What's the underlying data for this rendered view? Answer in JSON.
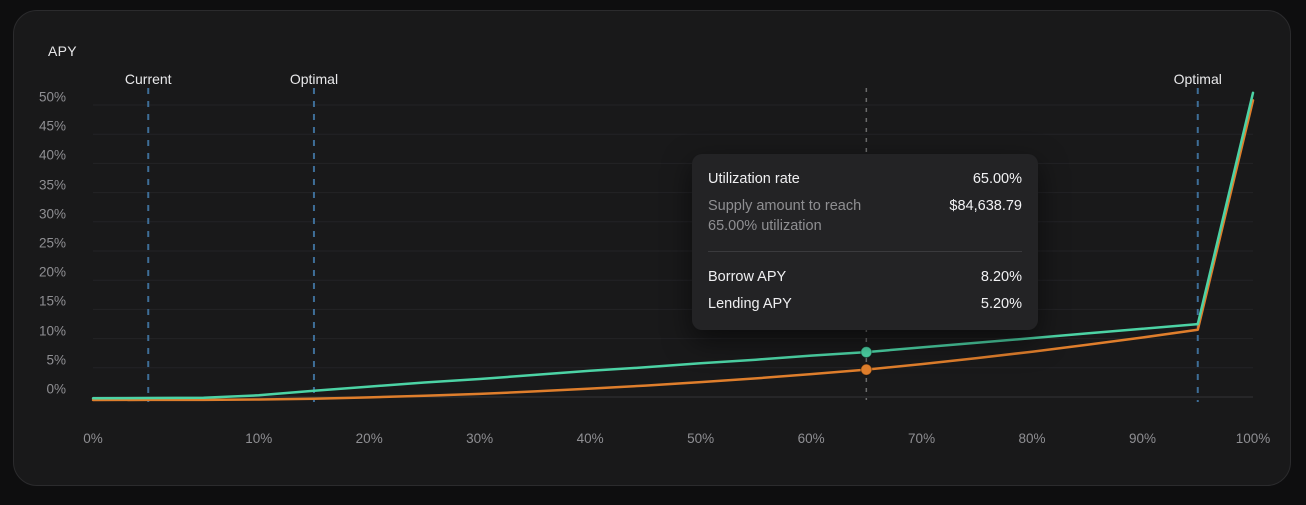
{
  "colors": {
    "page_bg": "#0e0e0f",
    "card_bg": "#19191a",
    "card_border": "#2b2b2d",
    "gridline": "#232326",
    "axis_baseline": "#323235",
    "borrow_line": "#4cd3a5",
    "lending_line": "#df7e2c",
    "marker_dashed": "#3e6e98",
    "crosshair_dashed": "#6b6b6b",
    "tick_text": "#8f8f93",
    "bright_text": "#e9e9eb",
    "tooltip_bg": "#232325"
  },
  "chart_data": {
    "type": "line",
    "title": "APY",
    "y_axis": {
      "label": "APY",
      "ticks": [
        0,
        5,
        10,
        15,
        20,
        25,
        30,
        35,
        40,
        45,
        50
      ],
      "tick_labels": [
        "0%",
        "5%",
        "10%",
        "15%",
        "20%",
        "25%",
        "30%",
        "35%",
        "40%",
        "45%",
        "50%"
      ],
      "range": [
        0,
        52.6
      ],
      "grid": true
    },
    "x_axis": {
      "label": "Utilization rate",
      "ticks": [
        0,
        10,
        20,
        30,
        40,
        50,
        60,
        70,
        80,
        90,
        100
      ],
      "tick_labels": [
        "0%",
        "10%",
        "20%",
        "30%",
        "40%",
        "50%",
        "60%",
        "70%",
        "80%",
        "90%",
        "100%"
      ],
      "range": [
        0,
        100
      ]
    },
    "utilization_points": [
      0,
      3.4,
      5,
      10,
      15,
      20,
      25,
      30,
      35,
      40,
      45,
      50,
      55,
      60,
      65,
      70,
      75,
      80,
      85,
      90,
      95,
      100
    ],
    "series": [
      {
        "name": "Borrow APY",
        "color": "#4cd3a5",
        "values": [
          0.3,
          0.35,
          0.4,
          0.8,
          1.6,
          2.3,
          3.0,
          3.6,
          4.3,
          5.0,
          5.6,
          6.3,
          6.9,
          7.6,
          8.2,
          9.0,
          9.8,
          10.6,
          11.4,
          12.2,
          13.0,
          52.6
        ]
      },
      {
        "name": "Lending APY",
        "color": "#df7e2c",
        "values": [
          0.0,
          0.01,
          0.02,
          0.08,
          0.23,
          0.45,
          0.73,
          1.05,
          1.47,
          1.95,
          2.46,
          3.07,
          3.7,
          4.44,
          5.2,
          6.14,
          7.17,
          8.27,
          9.45,
          10.71,
          12.04,
          51.3
        ]
      }
    ],
    "markers": [
      {
        "label": "Current",
        "util": 3.4
      },
      {
        "label": "Optimal",
        "util": 15
      },
      {
        "label": "Optimal",
        "util": 95
      }
    ],
    "crosshair": {
      "util": 65,
      "values": [
        8.2,
        5.2
      ]
    },
    "legend_position": "none"
  },
  "tooltip": {
    "utilization_label": "Utilization rate",
    "utilization_value": "65.00%",
    "supply_label_line1": "Supply amount to reach",
    "supply_label_line2": "65.00% utilization",
    "supply_value": "$84,638.79",
    "borrow_label": "Borrow APY",
    "borrow_value": "8.20%",
    "lending_label": "Lending APY",
    "lending_value": "5.20%"
  }
}
